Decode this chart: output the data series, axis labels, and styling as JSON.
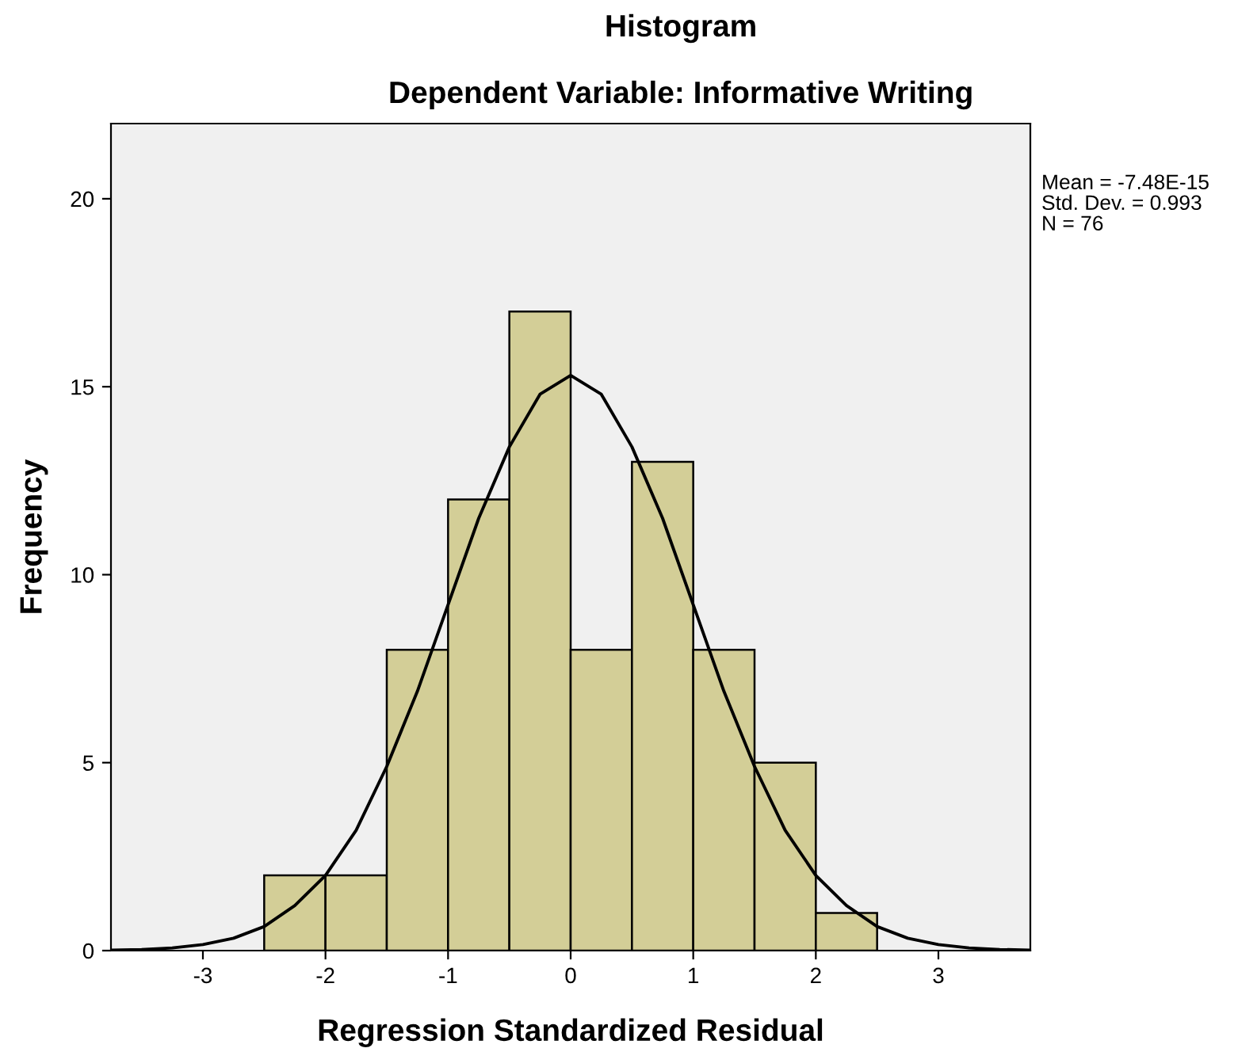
{
  "chart_data": {
    "type": "histogram",
    "title": "Histogram",
    "subtitle": "Dependent Variable: Informative Writing",
    "xlabel": "Regression Standardized Residual",
    "ylabel": "Frequency",
    "bins": [
      -2.5,
      -2.0,
      -1.5,
      -1.0,
      -0.5,
      0.0,
      0.5,
      1.0,
      1.5,
      2.0,
      2.5
    ],
    "values": [
      2,
      2,
      8,
      12,
      17,
      8,
      13,
      8,
      5,
      1
    ],
    "color": "#d3ce97",
    "series": [
      {
        "type": "line",
        "color": "#000000",
        "x": [
          -3.75,
          -3.5,
          -3.25,
          -3.0,
          -2.75,
          -2.5,
          -2.25,
          -2.0,
          -1.75,
          -1.5,
          -1.25,
          -1.0,
          -0.75,
          -0.5,
          -0.25,
          0.0,
          0.25,
          0.5,
          0.75,
          1.0,
          1.25,
          1.5,
          1.75,
          2.0,
          2.25,
          2.5,
          2.75,
          3.0,
          3.25,
          3.5,
          3.75
        ],
        "values": [
          0.01,
          0.03,
          0.07,
          0.16,
          0.33,
          0.64,
          1.2,
          2.0,
          3.2,
          4.9,
          6.9,
          9.2,
          11.5,
          13.4,
          14.8,
          15.3,
          14.8,
          13.4,
          11.5,
          9.2,
          6.9,
          4.9,
          3.2,
          2.0,
          1.2,
          0.64,
          0.33,
          0.16,
          0.07,
          0.03,
          0.01
        ]
      }
    ],
    "xlim": [
      -3.75,
      3.75
    ],
    "ylim": [
      0,
      22
    ],
    "xticks": [
      -3,
      -2,
      -1,
      0,
      1,
      2,
      3
    ],
    "yticks": [
      0,
      5,
      10,
      15,
      20
    ],
    "grid": false,
    "annotations": [
      "Mean = -7.48E-15",
      "Std. Dev. = 0.993",
      "N = 76"
    ]
  }
}
